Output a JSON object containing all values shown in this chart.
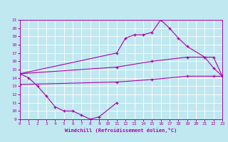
{
  "bg_color": "#c0e8f0",
  "line_color": "#aa00aa",
  "grid_color": "#ffffff",
  "xlabel": "Windchill (Refroidissement éolien,°C)",
  "xlim": [
    0,
    23
  ],
  "ylim": [
    9,
    21
  ],
  "xticks": [
    0,
    1,
    2,
    3,
    4,
    5,
    6,
    7,
    8,
    9,
    10,
    11,
    12,
    13,
    14,
    15,
    16,
    17,
    18,
    19,
    20,
    21,
    22,
    23
  ],
  "yticks": [
    9,
    10,
    11,
    12,
    13,
    14,
    15,
    16,
    17,
    18,
    19,
    20,
    21
  ],
  "line1_x": [
    0,
    1,
    2,
    3,
    4,
    5,
    6,
    7,
    8,
    9,
    11
  ],
  "line1_y": [
    14.5,
    14.0,
    13.0,
    11.8,
    10.5,
    10.0,
    10.0,
    9.5,
    9.0,
    9.3,
    11.0
  ],
  "line2_x": [
    0,
    11,
    12,
    13,
    14,
    15,
    16,
    17,
    18,
    19,
    21,
    22,
    23
  ],
  "line2_y": [
    14.5,
    17.0,
    18.8,
    19.2,
    19.2,
    19.5,
    21.0,
    20.0,
    18.8,
    17.8,
    16.5,
    15.2,
    14.2
  ],
  "line3_x": [
    0,
    11,
    15,
    19,
    22,
    23
  ],
  "line3_y": [
    14.5,
    15.3,
    16.0,
    16.5,
    16.5,
    14.2
  ],
  "line4_x": [
    0,
    11,
    15,
    19,
    22,
    23
  ],
  "line4_y": [
    13.2,
    13.5,
    13.8,
    14.2,
    14.2,
    14.2
  ]
}
